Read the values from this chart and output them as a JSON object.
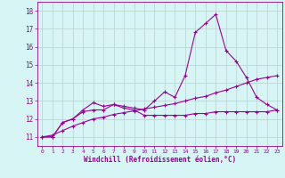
{
  "xlabel": "Windchill (Refroidissement éolien,°C)",
  "background_color": "#d8f5f5",
  "grid_color": "#b8d0d0",
  "line_color": "#990099",
  "xlim": [
    -0.5,
    23.5
  ],
  "ylim": [
    10.5,
    18.5
  ],
  "yticks": [
    11,
    12,
    13,
    14,
    15,
    16,
    17,
    18
  ],
  "xticks": [
    0,
    1,
    2,
    3,
    4,
    5,
    6,
    7,
    8,
    9,
    10,
    11,
    12,
    13,
    14,
    15,
    16,
    17,
    18,
    19,
    20,
    21,
    22,
    23
  ],
  "line1_x": [
    0,
    1,
    2,
    3,
    4,
    5,
    6,
    7,
    8,
    9,
    10,
    11,
    12,
    13,
    14,
    15,
    16,
    17,
    18,
    19,
    20,
    21,
    22,
    23
  ],
  "line1_y": [
    11.0,
    11.0,
    11.8,
    12.0,
    12.5,
    12.9,
    12.7,
    12.8,
    12.7,
    12.6,
    12.5,
    13.0,
    13.5,
    13.2,
    14.4,
    16.8,
    17.3,
    17.8,
    15.8,
    15.2,
    14.3,
    13.2,
    12.8,
    12.5
  ],
  "line2_x": [
    0,
    1,
    2,
    3,
    4,
    5,
    6,
    7,
    8,
    9,
    10,
    11,
    12,
    13,
    14,
    15,
    16,
    17,
    18,
    19,
    20,
    21,
    22,
    23
  ],
  "line2_y": [
    11.0,
    11.0,
    11.8,
    12.0,
    12.4,
    12.5,
    12.5,
    12.8,
    12.6,
    12.5,
    12.2,
    12.2,
    12.2,
    12.2,
    12.2,
    12.3,
    12.3,
    12.4,
    12.4,
    12.4,
    12.4,
    12.4,
    12.4,
    12.5
  ],
  "line3_x": [
    0,
    1,
    2,
    3,
    4,
    5,
    6,
    7,
    8,
    9,
    10,
    11,
    12,
    13,
    14,
    15,
    16,
    17,
    18,
    19,
    20,
    21,
    22,
    23
  ],
  "line3_y": [
    11.0,
    11.1,
    11.35,
    11.6,
    11.8,
    12.0,
    12.1,
    12.25,
    12.35,
    12.45,
    12.55,
    12.65,
    12.75,
    12.85,
    13.0,
    13.15,
    13.25,
    13.45,
    13.6,
    13.8,
    14.0,
    14.2,
    14.3,
    14.4
  ]
}
